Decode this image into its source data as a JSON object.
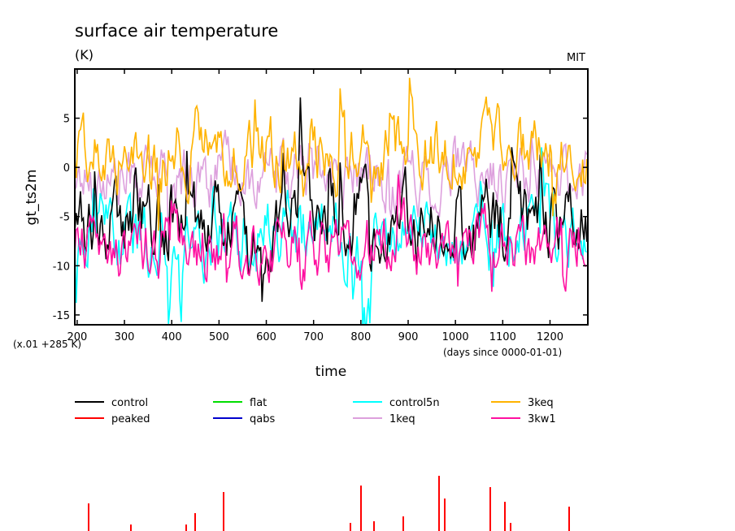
{
  "chart_data": {
    "type": "line",
    "title": "surface air temperature",
    "units": "(K)",
    "institution": "MIT",
    "ylabel": "gt_ts2m",
    "xlabel": "time",
    "y_scale_note": "(x.01 +285 K)",
    "x_units_note": "(days since 0000-01-01)",
    "xlim": [
      195,
      1280
    ],
    "ylim": [
      -16,
      10
    ],
    "x_ticks": [
      200,
      300,
      400,
      500,
      600,
      700,
      800,
      900,
      1000,
      1100,
      1200
    ],
    "x_tick_labels": [
      "200",
      "300",
      "400",
      "500",
      "600",
      "700",
      "800",
      "900",
      "1000",
      "1100",
      "1200"
    ],
    "y_ticks": [
      -15,
      -10,
      -5,
      0,
      5
    ],
    "y_tick_labels": [
      "-15",
      "-10",
      "-5",
      "0",
      "5"
    ],
    "series": [
      {
        "name": "control",
        "color": "#000000",
        "base": -5.5,
        "amp": 4.0
      },
      {
        "name": "peaked",
        "color": "#ff0000",
        "base": null,
        "amp": null
      },
      {
        "name": "flat",
        "color": "#00dd00",
        "base": null,
        "amp": null
      },
      {
        "name": "qabs",
        "color": "#0000cc",
        "base": null,
        "amp": null
      },
      {
        "name": "control5n",
        "color": "#00ffff",
        "base": -7.0,
        "amp": 4.0
      },
      {
        "name": "1keq",
        "color": "#dda0dd",
        "base": -1.0,
        "amp": 3.5
      },
      {
        "name": "3keq",
        "color": "#ffb300",
        "base": 1.5,
        "amp": 3.8
      },
      {
        "name": "3kw1",
        "color": "#ff10a0",
        "base": -8.0,
        "amp": 3.5
      }
    ],
    "legend": [
      {
        "label": "control",
        "color": "#000000"
      },
      {
        "label": "peaked",
        "color": "#ff0000"
      },
      {
        "label": "flat",
        "color": "#00dd00"
      },
      {
        "label": "qabs",
        "color": "#0000cc"
      },
      {
        "label": "control5n",
        "color": "#00ffff"
      },
      {
        "label": "1keq",
        "color": "#dda0dd"
      },
      {
        "label": "3keq",
        "color": "#ffb300"
      },
      {
        "label": "3kw1",
        "color": "#ff10a0"
      }
    ]
  }
}
